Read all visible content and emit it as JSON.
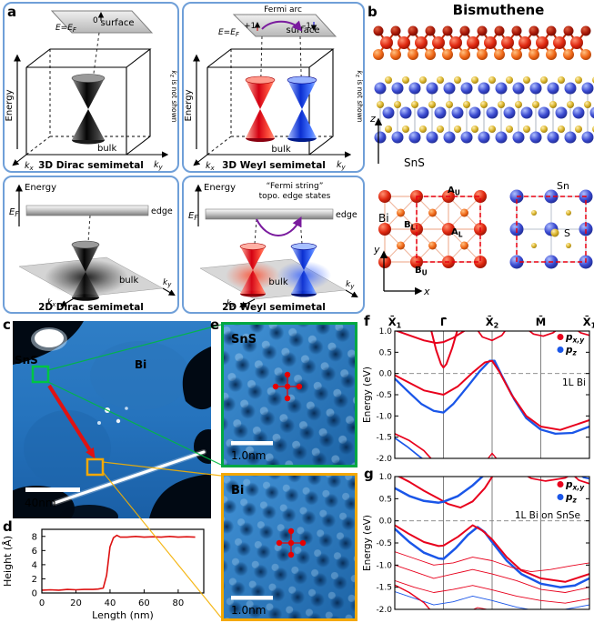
{
  "colors": {
    "pxy": "#e8001c",
    "pz": "#1a56e8",
    "box_border": "#6f9fd8",
    "weyl_red": "#e80000",
    "purple": "#7a1b9e"
  },
  "panel_a": {
    "label": "a",
    "d3_dirac": {
      "surface": "surface",
      "e_ef": "E=E",
      "e_ef_sub": "F",
      "zero": "0",
      "energy": "Energy",
      "bulk": "bulk",
      "k": "k",
      "kx_sub": "x",
      "ky_sub": "y",
      "kz_k": "k",
      "kz_sub": "z",
      "kz_rest": " is not shown",
      "title": "3D Dirac semimetal"
    },
    "d3_weyl": {
      "surface": "surface",
      "fermi_arc": "Fermi arc",
      "plus1": "+1",
      "minus1": "-1",
      "e_ef": "E=E",
      "e_ef_sub": "F",
      "energy": "Energy",
      "bulk": "bulk",
      "k": "k",
      "kx_sub": "x",
      "ky_sub": "y",
      "kz_k": "k",
      "kz_sub": "z",
      "kz_rest": " is not shown",
      "title": "3D Weyl semimetal"
    },
    "d2_dirac": {
      "energy": "Energy",
      "ef": "E",
      "ef_sub": "F",
      "edge": "edge",
      "bulk": "bulk",
      "k": "k",
      "kx_sub": "x",
      "ky_sub": "y",
      "title": "2D Dirac semimetal"
    },
    "d2_weyl": {
      "energy": "Energy",
      "fermi_string_line1": "“Fermi string”",
      "fermi_string_line2": "topo. edge states",
      "ef": "E",
      "ef_sub": "F",
      "edge": "edge",
      "bulk": "bulk",
      "k": "k",
      "kx_sub": "x",
      "ky_sub": "y",
      "title": "2D Weyl semimetal"
    }
  },
  "panel_b": {
    "label": "b",
    "title": "Bismuthene",
    "sns_label": "SnS",
    "bi_label": "Bi",
    "sn_label": "Sn",
    "s_label": "S",
    "axis_z": "z",
    "axis_y": "y",
    "axis_x": "x",
    "site_au": "A",
    "site_au_sub": "U",
    "site_bl": "B",
    "site_bl_sub": "L",
    "site_al": "A",
    "site_al_sub": "L",
    "site_bu": "B",
    "site_bu_sub": "U"
  },
  "panel_c": {
    "label": "c",
    "sns_label": "SnS",
    "bi_label": "Bi",
    "scale_bar": "40nm"
  },
  "panel_d": {
    "label": "d",
    "chart_data": {
      "type": "line",
      "xlabel": "Length (nm)",
      "ylabel": "Height (Å)",
      "xlim": [
        0,
        95
      ],
      "ylim": [
        0,
        9
      ],
      "xticks": [
        0,
        20,
        40,
        60,
        80
      ],
      "yticks": [
        0,
        2,
        4,
        6,
        8
      ],
      "color": "#dd1111",
      "x": [
        0,
        5,
        10,
        15,
        20,
        25,
        30,
        33,
        36,
        38,
        40,
        42,
        44,
        46,
        50,
        55,
        60,
        65,
        70,
        75,
        80,
        85,
        90
      ],
      "y": [
        0.4,
        0.45,
        0.4,
        0.5,
        0.45,
        0.5,
        0.5,
        0.55,
        0.7,
        2.5,
        6.5,
        7.8,
        8.15,
        7.9,
        7.9,
        8.0,
        7.9,
        7.95,
        7.9,
        8.0,
        7.9,
        7.95,
        7.9
      ]
    }
  },
  "panel_e": {
    "label": "e",
    "top_label": "SnS",
    "bottom_label": "Bi",
    "scale_bar_top": "1.0nm",
    "scale_bar_bottom": "1.0nm"
  },
  "kpath": [
    {
      "base": "X̄",
      "sub": "1"
    },
    {
      "base": "Γ̄",
      "sub": ""
    },
    {
      "base": "X̄",
      "sub": "2"
    },
    {
      "base": "M̄",
      "sub": ""
    },
    {
      "base": "X̄",
      "sub": "1"
    }
  ],
  "energy_axis_label": "Energy (eV)",
  "panel_f": {
    "label": "f",
    "annotation": "1L Bi",
    "legend": [
      {
        "main": "p",
        "sub": "x,y",
        "color": "#e8001c"
      },
      {
        "main": "p",
        "sub": "z",
        "color": "#1a56e8"
      }
    ],
    "chart_data": {
      "type": "line",
      "k_labels": [
        "X̄1",
        "Γ̄",
        "X̄2",
        "M̄",
        "X̄1"
      ],
      "x_positions": [
        0,
        1,
        2,
        3,
        4
      ],
      "ylabel": "Energy (eV)",
      "ylim": [
        -2.0,
        1.0
      ],
      "yticks": [
        1.0,
        0.5,
        0.0,
        -0.5,
        -1.0,
        -1.5,
        -2.0
      ],
      "series": [
        {
          "c": "pxy",
          "w": 2,
          "points": [
            [
              0,
              1.02
            ],
            [
              0.3,
              0.9
            ],
            [
              0.6,
              0.78
            ],
            [
              0.85,
              0.72
            ],
            [
              1,
              0.74
            ],
            [
              1.2,
              0.84
            ],
            [
              1.45,
              1.02
            ],
            [
              1.6,
              1.15
            ]
          ]
        },
        {
          "c": "pxy",
          "w": 2,
          "points": [
            [
              0.72,
              1.15
            ],
            [
              0.85,
              0.55
            ],
            [
              0.95,
              0.22
            ],
            [
              1,
              0.14
            ],
            [
              1.06,
              0.22
            ],
            [
              1.18,
              0.6
            ],
            [
              1.32,
              1.15
            ]
          ]
        },
        {
          "c": "pxy",
          "w": 1.7,
          "points": [
            [
              1.62,
              1.15
            ],
            [
              1.8,
              0.86
            ],
            [
              2,
              0.78
            ],
            [
              2.2,
              0.9
            ],
            [
              2.36,
              1.15
            ]
          ]
        },
        {
          "c": "pxy",
          "w": 1.7,
          "points": [
            [
              2.6,
              1.15
            ],
            [
              2.85,
              0.93
            ],
            [
              3.05,
              0.88
            ],
            [
              3.25,
              0.96
            ],
            [
              3.48,
              1.15
            ]
          ]
        },
        {
          "c": "pxy",
          "w": 1.7,
          "points": [
            [
              3.6,
              1.15
            ],
            [
              3.82,
              0.96
            ],
            [
              4,
              0.9
            ]
          ]
        },
        {
          "c": "pz",
          "w": 2.3,
          "points": [
            [
              0,
              -0.12
            ],
            [
              0.25,
              -0.4
            ],
            [
              0.55,
              -0.72
            ],
            [
              0.8,
              -0.88
            ],
            [
              1,
              -0.92
            ],
            [
              1.2,
              -0.72
            ],
            [
              1.5,
              -0.3
            ],
            [
              1.75,
              0.06
            ],
            [
              1.95,
              0.3
            ],
            [
              2.05,
              0.3
            ],
            [
              2.2,
              -0.05
            ],
            [
              2.45,
              -0.6
            ],
            [
              2.7,
              -1.05
            ],
            [
              3,
              -1.32
            ],
            [
              3.3,
              -1.42
            ],
            [
              3.65,
              -1.4
            ],
            [
              4,
              -1.25
            ]
          ]
        },
        {
          "c": "pxy",
          "w": 2,
          "points": [
            [
              0,
              -0.04
            ],
            [
              0.3,
              -0.22
            ],
            [
              0.6,
              -0.4
            ],
            [
              1,
              -0.5
            ],
            [
              1.3,
              -0.3
            ],
            [
              1.6,
              0.02
            ],
            [
              1.85,
              0.26
            ],
            [
              2,
              0.3
            ],
            [
              2.15,
              0.04
            ],
            [
              2.4,
              -0.5
            ],
            [
              2.7,
              -1.0
            ],
            [
              3,
              -1.25
            ],
            [
              3.4,
              -1.33
            ],
            [
              4,
              -1.1
            ]
          ]
        },
        {
          "c": "pxy",
          "w": 1.7,
          "points": [
            [
              0,
              -1.42
            ],
            [
              0.3,
              -1.58
            ],
            [
              0.6,
              -1.82
            ],
            [
              0.82,
              -2.1
            ]
          ]
        },
        {
          "c": "pz",
          "w": 1.7,
          "points": [
            [
              0,
              -1.52
            ],
            [
              0.25,
              -1.72
            ],
            [
              0.5,
              -1.95
            ],
            [
              0.68,
              -2.1
            ]
          ]
        },
        {
          "c": "pxy",
          "w": 1.4,
          "points": [
            [
              1.85,
              -2.1
            ],
            [
              2,
              -1.88
            ],
            [
              2.16,
              -2.1
            ]
          ]
        }
      ]
    }
  },
  "panel_g": {
    "label": "g",
    "annotation": "1L Bi on SnSe",
    "legend": [
      {
        "main": "p",
        "sub": "x,y",
        "color": "#e8001c"
      },
      {
        "main": "p",
        "sub": "z",
        "color": "#1a56e8"
      }
    ],
    "chart_data": {
      "type": "line",
      "k_labels": [
        "X̄1",
        "Γ̄",
        "X̄2",
        "M̄",
        "X̄1"
      ],
      "x_positions": [
        0,
        1,
        2,
        3,
        4
      ],
      "ylabel": "Energy (eV)",
      "ylim": [
        -2.0,
        1.0
      ],
      "yticks": [
        1.0,
        0.5,
        0.0,
        -0.5,
        -1.0,
        -1.5,
        -2.0
      ],
      "series": [
        {
          "c": "pxy",
          "w": 2,
          "points": [
            [
              0,
              1.05
            ],
            [
              0.3,
              0.88
            ],
            [
              0.6,
              0.68
            ],
            [
              0.9,
              0.5
            ],
            [
              1.1,
              0.38
            ],
            [
              1.35,
              0.3
            ],
            [
              1.6,
              0.44
            ],
            [
              1.85,
              0.74
            ],
            [
              2.05,
              1.08
            ]
          ]
        },
        {
          "c": "pz",
          "w": 2.5,
          "points": [
            [
              0,
              0.74
            ],
            [
              0.3,
              0.56
            ],
            [
              0.6,
              0.45
            ],
            [
              0.9,
              0.41
            ],
            [
              1,
              0.43
            ],
            [
              1.3,
              0.56
            ],
            [
              1.6,
              0.8
            ],
            [
              1.8,
              1.0
            ],
            [
              1.95,
              1.15
            ]
          ]
        },
        {
          "c": "pxy",
          "w": 1.7,
          "points": [
            [
              2.5,
              1.15
            ],
            [
              2.8,
              0.96
            ],
            [
              3.1,
              0.9
            ],
            [
              3.5,
              0.97
            ],
            [
              3.8,
              1.15
            ]
          ]
        },
        {
          "c": "pxy",
          "w": 1.7,
          "points": [
            [
              3.55,
              1.15
            ],
            [
              3.78,
              0.92
            ],
            [
              4,
              0.84
            ]
          ]
        },
        {
          "c": "pz",
          "w": 1.7,
          "points": [
            [
              3.65,
              1.15
            ],
            [
              3.88,
              0.98
            ],
            [
              4,
              0.95
            ]
          ]
        },
        {
          "c": "pz",
          "w": 2.5,
          "points": [
            [
              0,
              -0.18
            ],
            [
              0.3,
              -0.48
            ],
            [
              0.6,
              -0.72
            ],
            [
              0.9,
              -0.85
            ],
            [
              1,
              -0.86
            ],
            [
              1.25,
              -0.62
            ],
            [
              1.5,
              -0.32
            ],
            [
              1.7,
              -0.14
            ],
            [
              1.85,
              -0.26
            ],
            [
              2,
              -0.48
            ],
            [
              2.3,
              -0.9
            ],
            [
              2.6,
              -1.2
            ],
            [
              3,
              -1.42
            ],
            [
              3.4,
              -1.5
            ],
            [
              3.7,
              -1.46
            ],
            [
              4,
              -1.3
            ]
          ]
        },
        {
          "c": "pxy",
          "w": 2,
          "points": [
            [
              0,
              -0.1
            ],
            [
              0.3,
              -0.3
            ],
            [
              0.6,
              -0.48
            ],
            [
              0.9,
              -0.57
            ],
            [
              1,
              -0.56
            ],
            [
              1.3,
              -0.36
            ],
            [
              1.6,
              -0.1
            ],
            [
              1.8,
              -0.22
            ],
            [
              2,
              -0.42
            ],
            [
              2.3,
              -0.82
            ],
            [
              2.6,
              -1.12
            ],
            [
              3,
              -1.3
            ],
            [
              3.5,
              -1.38
            ],
            [
              4,
              -1.2
            ]
          ]
        },
        {
          "c": "pxy",
          "w": 0.9,
          "points": [
            [
              0,
              -0.7
            ],
            [
              0.4,
              -0.85
            ],
            [
              0.8,
              -1.0
            ],
            [
              1.2,
              -0.95
            ],
            [
              1.6,
              -0.82
            ],
            [
              2,
              -0.9
            ],
            [
              2.4,
              -1.05
            ],
            [
              2.8,
              -1.15
            ],
            [
              3.2,
              -1.1
            ],
            [
              3.6,
              -1.02
            ],
            [
              4,
              -0.95
            ]
          ]
        },
        {
          "c": "pxy",
          "w": 0.9,
          "points": [
            [
              0,
              -1.0
            ],
            [
              0.4,
              -1.15
            ],
            [
              0.8,
              -1.3
            ],
            [
              1.2,
              -1.2
            ],
            [
              1.6,
              -1.1
            ],
            [
              2,
              -1.2
            ],
            [
              2.5,
              -1.35
            ],
            [
              3,
              -1.55
            ],
            [
              3.5,
              -1.62
            ],
            [
              4,
              -1.5
            ]
          ]
        },
        {
          "c": "pxy",
          "w": 0.9,
          "points": [
            [
              0,
              -1.35
            ],
            [
              0.4,
              -1.5
            ],
            [
              0.8,
              -1.62
            ],
            [
              1.2,
              -1.55
            ],
            [
              1.6,
              -1.46
            ],
            [
              2,
              -1.56
            ],
            [
              2.5,
              -1.7
            ],
            [
              3,
              -1.8
            ],
            [
              3.5,
              -1.86
            ],
            [
              4,
              -1.76
            ]
          ]
        },
        {
          "c": "pz",
          "w": 0.9,
          "points": [
            [
              0,
              -1.6
            ],
            [
              0.4,
              -1.75
            ],
            [
              0.8,
              -1.9
            ],
            [
              1.2,
              -1.83
            ],
            [
              1.6,
              -1.7
            ],
            [
              2,
              -1.8
            ],
            [
              2.5,
              -1.95
            ],
            [
              3,
              -2.05
            ],
            [
              3.5,
              -2.0
            ],
            [
              4,
              -1.9
            ]
          ]
        },
        {
          "c": "pxy",
          "w": 1.4,
          "points": [
            [
              0,
              -1.45
            ],
            [
              0.3,
              -1.62
            ],
            [
              0.6,
              -1.85
            ],
            [
              0.8,
              -2.1
            ]
          ]
        },
        {
          "c": "pxy",
          "w": 0.9,
          "points": [
            [
              1.4,
              -2.1
            ],
            [
              1.7,
              -1.96
            ],
            [
              2,
              -2.02
            ],
            [
              2.3,
              -2.1
            ]
          ]
        }
      ]
    }
  }
}
